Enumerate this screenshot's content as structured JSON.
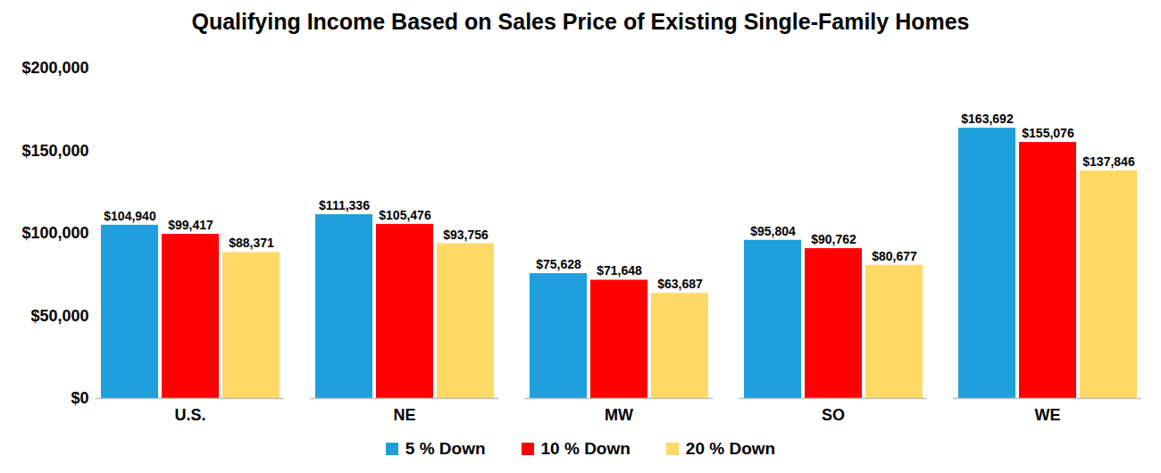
{
  "chart_data": {
    "type": "bar",
    "title": "Qualifying Income Based on Sales Price of Existing Single-Family Homes",
    "categories": [
      "U.S.",
      "NE",
      "MW",
      "SO",
      "WE"
    ],
    "series": [
      {
        "name": "5 % Down",
        "color": "#1f9fdb",
        "values": [
          104940,
          111336,
          75628,
          95804,
          163692
        ],
        "value_labels": [
          "$104,940",
          "$111,336",
          "$75,628",
          "$95,804",
          "$163,692"
        ]
      },
      {
        "name": "10 % Down",
        "color": "#ff0000",
        "values": [
          99417,
          105476,
          71648,
          90762,
          155076
        ],
        "value_labels": [
          "$99,417",
          "$105,476",
          "$71,648",
          "$90,762",
          "$155,076"
        ]
      },
      {
        "name": "20 % Down",
        "color": "#ffd966",
        "values": [
          88371,
          93756,
          63687,
          80677,
          137846
        ],
        "value_labels": [
          "$88,371",
          "$93,756",
          "$63,687",
          "$80,677",
          "$137,846"
        ]
      }
    ],
    "ylim": [
      0,
      200000
    ],
    "yticks": [
      {
        "value": 0,
        "label": "$0"
      },
      {
        "value": 50000,
        "label": "$50,000"
      },
      {
        "value": 100000,
        "label": "$100,000"
      },
      {
        "value": 150000,
        "label": "$150,000"
      },
      {
        "value": 200000,
        "label": "$200,000"
      }
    ],
    "grid": false,
    "data_labels": true,
    "legend": "bottom"
  }
}
